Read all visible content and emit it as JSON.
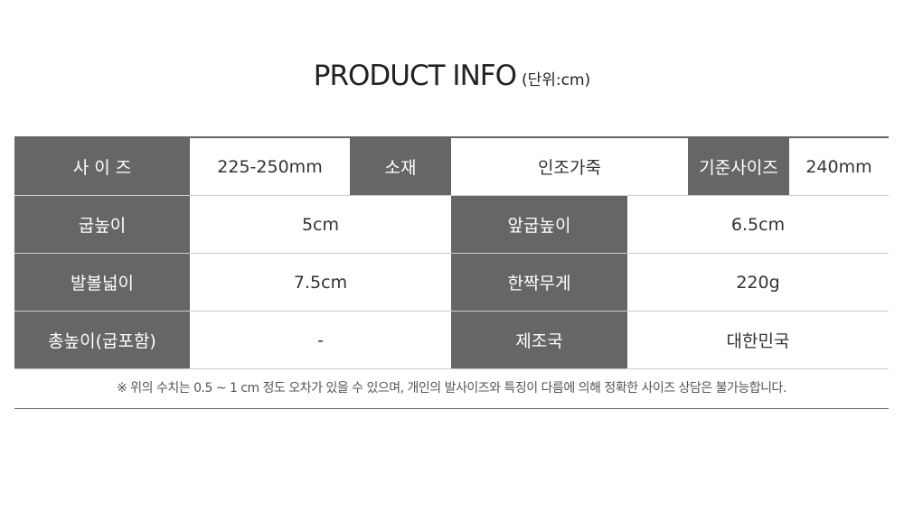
{
  "title": {
    "main": "PRODUCT INFO",
    "unit": "(단위:cm)"
  },
  "rows": [
    [
      {
        "label": "사 이 즈",
        "value": "225-250mm"
      },
      {
        "label": "소재",
        "value": "인조가죽"
      },
      {
        "label": "기준사이즈",
        "value": "240mm"
      }
    ],
    [
      {
        "label": "굽높이",
        "value": "5cm"
      },
      {
        "label": "앞굽높이",
        "value": "6.5cm"
      }
    ],
    [
      {
        "label": "발볼넓이",
        "value": "7.5cm"
      },
      {
        "label": "한짝무게",
        "value": "220g"
      }
    ],
    [
      {
        "label": "총높이(굽포함)",
        "value": "-"
      },
      {
        "label": "제조국",
        "value": "대한민국"
      }
    ]
  ],
  "note": "※ 위의 수치는 0.5 ~ 1 cm 정도 오차가 있을 수 있으며, 개인의 발사이즈와 특징이 다름에 의해 정확한 사이즈 상담은 불가능합니다."
}
